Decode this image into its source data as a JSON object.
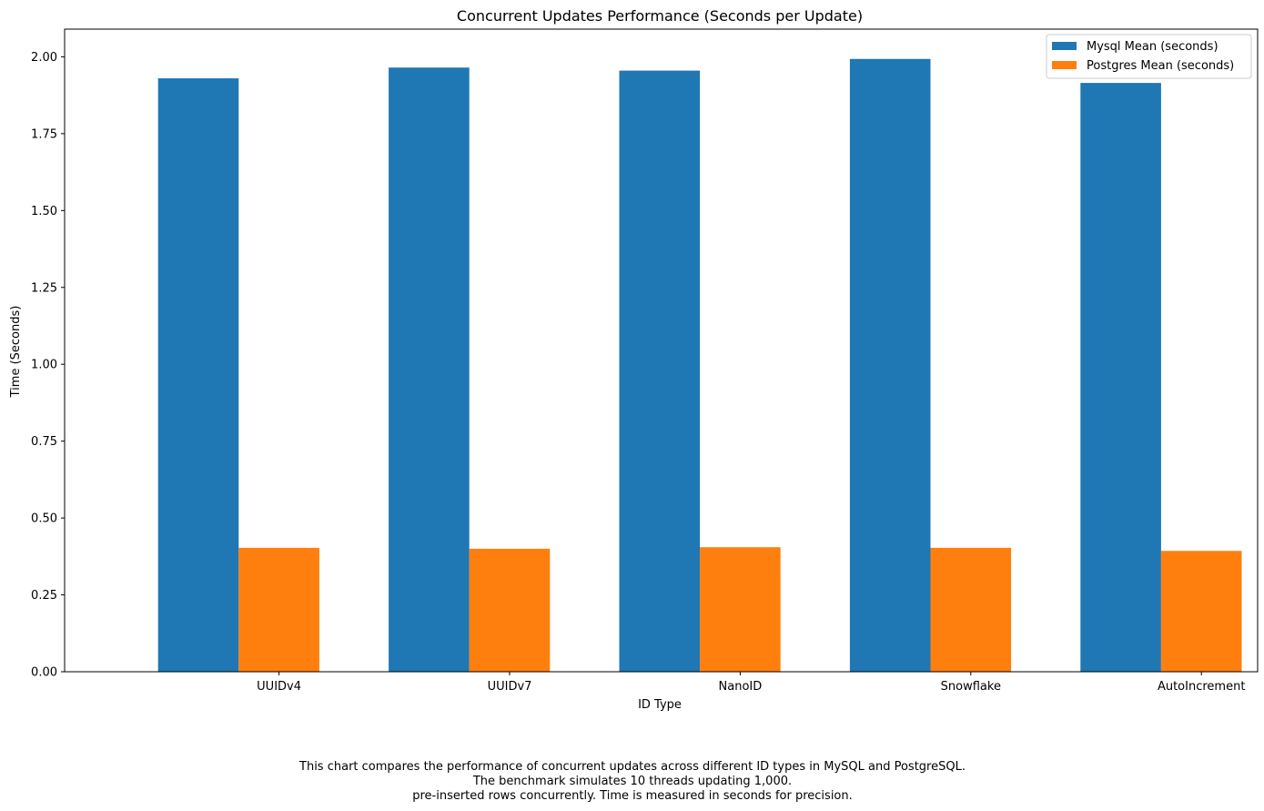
{
  "chart_data": {
    "type": "bar",
    "title": "Concurrent Updates Performance (Seconds per Update)",
    "xlabel": "ID Type",
    "ylabel": "Time (Seconds)",
    "categories": [
      "UUIDv4",
      "UUIDv7",
      "NanoID",
      "Snowflake",
      "AutoIncrement"
    ],
    "series": [
      {
        "name": "Mysql Mean (seconds)",
        "color": "#1f77b4",
        "values": [
          1.93,
          1.965,
          1.955,
          1.993,
          1.915
        ]
      },
      {
        "name": "Postgres Mean (seconds)",
        "color": "#ff7f0e",
        "values": [
          0.403,
          0.4,
          0.405,
          0.403,
          0.393
        ]
      }
    ],
    "ylim": [
      0,
      2.09
    ],
    "yticks": [
      0.0,
      0.25,
      0.5,
      0.75,
      1.0,
      1.25,
      1.5,
      1.75,
      2.0
    ],
    "ytick_labels": [
      "0.00",
      "0.25",
      "0.50",
      "0.75",
      "1.00",
      "1.25",
      "1.50",
      "1.75",
      "2.00"
    ],
    "legend_position": "top-right",
    "grid": false
  },
  "caption": {
    "lines": [
      "This chart compares the performance of concurrent updates across different ID types in MySQL and PostgreSQL.",
      "The benchmark simulates 10 threads updating 1,000.",
      "pre-inserted rows concurrently. Time is measured in seconds for precision."
    ]
  }
}
